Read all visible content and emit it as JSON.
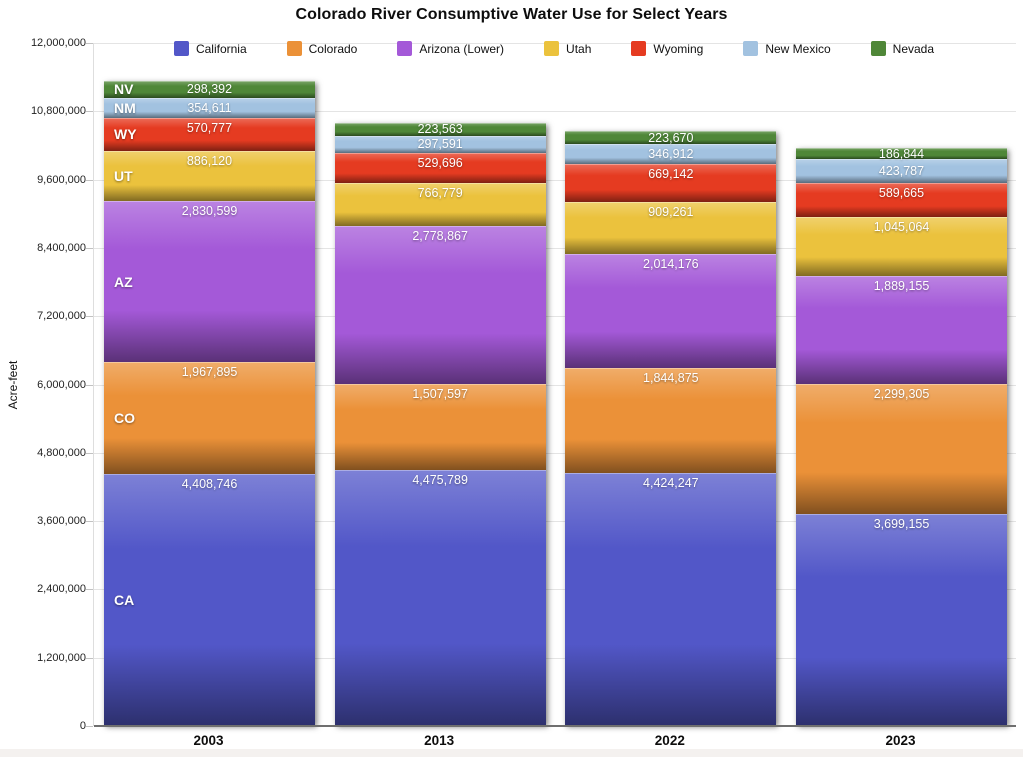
{
  "title": "Colorado River Consumptive Water Use for Select Years",
  "chart_data": {
    "type": "bar",
    "stacked": true,
    "title": "Colorado River Consumptive Water Use for Select Years",
    "ylabel": "Acre-feet",
    "xlabel": "",
    "ylim": [
      0,
      12000000
    ],
    "grid": true,
    "legend_position": "top",
    "categories": [
      "2003",
      "2013",
      "2022",
      "2023"
    ],
    "yticks": [
      "0",
      "1,200,000",
      "2,400,000",
      "3,600,000",
      "4,800,000",
      "6,000,000",
      "7,200,000",
      "8,400,000",
      "9,600,000",
      "10,800,000",
      "12,000,000"
    ],
    "series": [
      {
        "name": "California",
        "abbr": "CA",
        "color": "#5257c8",
        "values": [
          4408746,
          4475789,
          4424247,
          3699155
        ]
      },
      {
        "name": "Colorado",
        "abbr": "CO",
        "color": "#eb9138",
        "values": [
          1967895,
          1507597,
          1844875,
          2299305
        ]
      },
      {
        "name": "Arizona (Lower)",
        "abbr": "AZ",
        "color": "#a459d8",
        "values": [
          2830599,
          2778867,
          2014176,
          1889155
        ]
      },
      {
        "name": "Utah",
        "abbr": "UT",
        "color": "#ebc23d",
        "values": [
          886120,
          766779,
          909261,
          1045064
        ]
      },
      {
        "name": "Wyoming",
        "abbr": "WY",
        "color": "#e53b21",
        "values": [
          570777,
          529696,
          669142,
          589665
        ]
      },
      {
        "name": "New Mexico",
        "abbr": "NM",
        "color": "#a2c2e0",
        "values": [
          354611,
          297591,
          346912,
          423787
        ]
      },
      {
        "name": "Nevada",
        "abbr": "NV",
        "color": "#4f8738",
        "values": [
          298392,
          223563,
          223670,
          186844
        ]
      }
    ]
  }
}
